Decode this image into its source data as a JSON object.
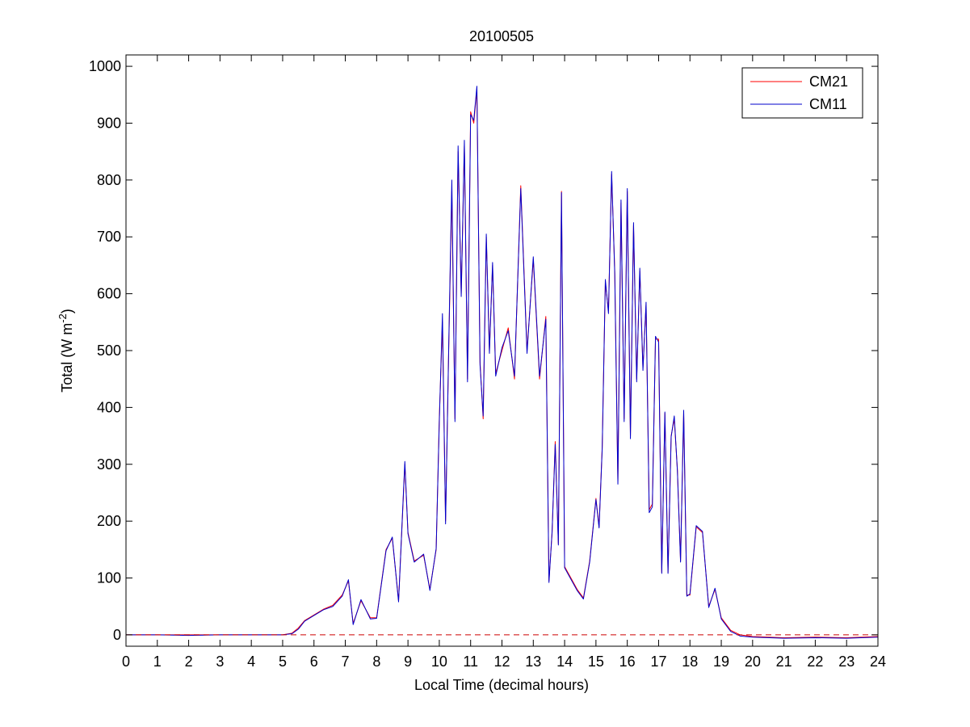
{
  "chart_data": {
    "type": "line",
    "title": "20100505",
    "xlabel": "Local Time (decimal hours)",
    "ylabel": {
      "prefix": "Total (W m",
      "superscript": "-2",
      "suffix": ")"
    },
    "xlim": [
      0,
      24
    ],
    "ylim": [
      -20,
      1020
    ],
    "x_ticks": [
      0,
      1,
      2,
      3,
      4,
      5,
      6,
      7,
      8,
      9,
      10,
      11,
      12,
      13,
      14,
      15,
      16,
      17,
      18,
      19,
      20,
      21,
      22,
      23,
      24
    ],
    "y_ticks": [
      0,
      100,
      200,
      300,
      400,
      500,
      600,
      700,
      800,
      900,
      1000
    ],
    "grid": false,
    "legend_position": "top-right",
    "zero_reference_line": {
      "y": 0,
      "color": "#cc0000",
      "style": "dashed"
    },
    "series": [
      {
        "name": "CM21",
        "color": "#ff0000",
        "x": [
          0,
          1,
          2,
          3,
          4,
          5,
          5.3,
          5.5,
          5.7,
          6.0,
          6.3,
          6.6,
          6.9,
          7.1,
          7.25,
          7.5,
          7.8,
          8.0,
          8.3,
          8.5,
          8.7,
          8.9,
          9.0,
          9.2,
          9.5,
          9.7,
          9.9,
          10.0,
          10.1,
          10.2,
          10.3,
          10.4,
          10.5,
          10.6,
          10.7,
          10.8,
          10.9,
          11.0,
          11.1,
          11.2,
          11.3,
          11.4,
          11.5,
          11.6,
          11.7,
          11.8,
          12.0,
          12.2,
          12.4,
          12.6,
          12.8,
          13.0,
          13.2,
          13.4,
          13.5,
          13.6,
          13.7,
          13.8,
          13.9,
          14.0,
          14.2,
          14.4,
          14.6,
          14.8,
          15.0,
          15.1,
          15.2,
          15.3,
          15.4,
          15.5,
          15.6,
          15.7,
          15.8,
          15.9,
          16.0,
          16.1,
          16.2,
          16.3,
          16.4,
          16.5,
          16.6,
          16.7,
          16.8,
          16.9,
          17.0,
          17.1,
          17.2,
          17.3,
          17.4,
          17.5,
          17.6,
          17.7,
          17.8,
          17.9,
          18.0,
          18.2,
          18.4,
          18.6,
          18.8,
          19.0,
          19.3,
          19.6,
          20,
          21,
          22,
          23,
          24
        ],
        "y": [
          0,
          0,
          0,
          0,
          0,
          0,
          3,
          12,
          25,
          35,
          45,
          52,
          70,
          95,
          20,
          60,
          30,
          30,
          150,
          170,
          60,
          300,
          180,
          130,
          140,
          80,
          150,
          380,
          550,
          200,
          500,
          780,
          380,
          850,
          600,
          860,
          450,
          920,
          900,
          960,
          480,
          380,
          700,
          500,
          650,
          460,
          500,
          540,
          450,
          790,
          500,
          660,
          450,
          560,
          95,
          180,
          340,
          160,
          780,
          120,
          100,
          80,
          65,
          130,
          240,
          190,
          330,
          620,
          570,
          810,
          640,
          270,
          760,
          380,
          780,
          350,
          720,
          450,
          640,
          470,
          580,
          220,
          230,
          520,
          520,
          110,
          390,
          110,
          350,
          380,
          290,
          130,
          390,
          70,
          70,
          190,
          180,
          50,
          80,
          30,
          8,
          0,
          -3,
          -5,
          -4,
          -5,
          -3
        ],
        "draw_order": 0
      },
      {
        "name": "CM11",
        "color": "#0000cc",
        "x": [
          0,
          1,
          2,
          3,
          4,
          5,
          5.3,
          5.5,
          5.7,
          6.0,
          6.3,
          6.6,
          6.9,
          7.1,
          7.25,
          7.5,
          7.8,
          8.0,
          8.3,
          8.5,
          8.7,
          8.9,
          9.0,
          9.2,
          9.5,
          9.7,
          9.9,
          10.0,
          10.1,
          10.2,
          10.3,
          10.4,
          10.5,
          10.6,
          10.7,
          10.8,
          10.9,
          11.0,
          11.1,
          11.2,
          11.3,
          11.4,
          11.5,
          11.6,
          11.7,
          11.8,
          12.0,
          12.2,
          12.4,
          12.6,
          12.8,
          13.0,
          13.2,
          13.4,
          13.5,
          13.6,
          13.7,
          13.8,
          13.9,
          14.0,
          14.2,
          14.4,
          14.6,
          14.8,
          15.0,
          15.1,
          15.2,
          15.3,
          15.4,
          15.5,
          15.6,
          15.7,
          15.8,
          15.9,
          16.0,
          16.1,
          16.2,
          16.3,
          16.4,
          16.5,
          16.6,
          16.7,
          16.8,
          16.9,
          17.0,
          17.1,
          17.2,
          17.3,
          17.4,
          17.5,
          17.6,
          17.7,
          17.8,
          17.9,
          18.0,
          18.2,
          18.4,
          18.6,
          18.8,
          19.0,
          19.3,
          19.6,
          20,
          21,
          22,
          23,
          24
        ],
        "y": [
          0,
          0,
          -1,
          0,
          0,
          0,
          2,
          10,
          24,
          34,
          44,
          50,
          68,
          97,
          18,
          62,
          28,
          29,
          148,
          172,
          58,
          305,
          178,
          128,
          142,
          78,
          152,
          375,
          565,
          195,
          505,
          800,
          375,
          860,
          595,
          870,
          445,
          915,
          905,
          965,
          475,
          385,
          705,
          495,
          655,
          455,
          505,
          535,
          455,
          785,
          495,
          665,
          455,
          555,
          92,
          182,
          335,
          158,
          778,
          118,
          98,
          78,
          63,
          128,
          238,
          188,
          328,
          625,
          565,
          815,
          635,
          265,
          765,
          375,
          785,
          345,
          725,
          445,
          645,
          465,
          585,
          215,
          225,
          525,
          515,
          108,
          392,
          108,
          348,
          385,
          288,
          128,
          395,
          68,
          72,
          192,
          182,
          48,
          82,
          28,
          6,
          -2,
          -4,
          -6,
          -5,
          -6,
          -4
        ],
        "draw_order": 1
      }
    ]
  }
}
